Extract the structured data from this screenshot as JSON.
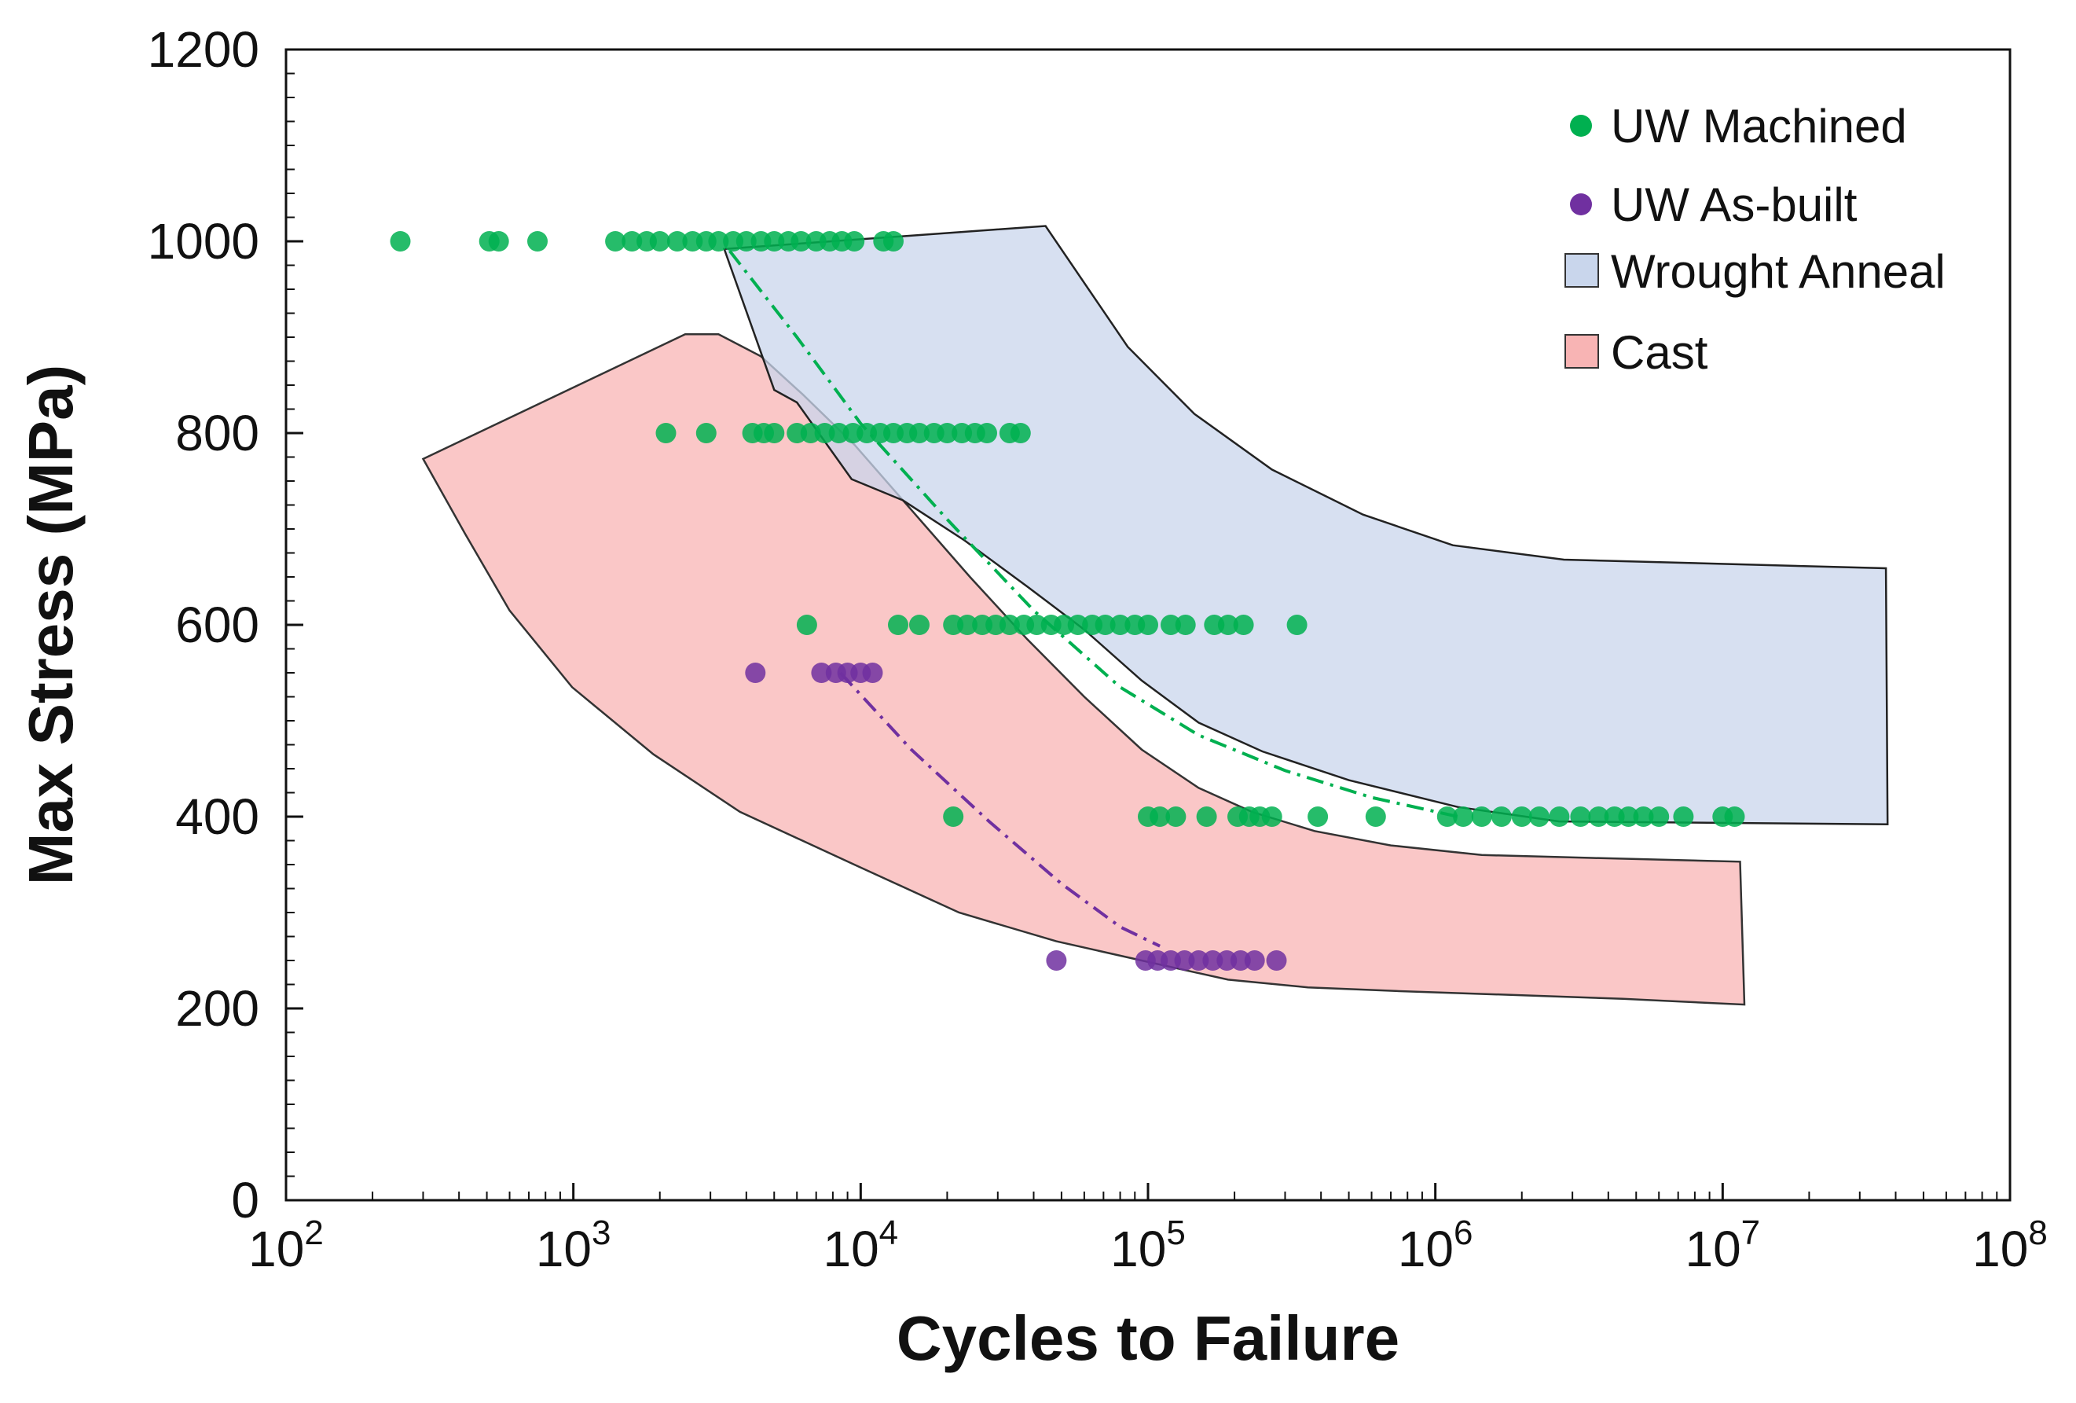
{
  "chart_data": {
    "type": "scatter",
    "title": "",
    "xlabel": "Cycles to Failure",
    "ylabel": "Max Stress (MPa)",
    "xscale": "log",
    "xlim": [
      100,
      100000000
    ],
    "ylim": [
      0,
      1200
    ],
    "x_ticks": [
      {
        "value": 100,
        "base": "10",
        "exp": "2"
      },
      {
        "value": 1000,
        "base": "10",
        "exp": "3"
      },
      {
        "value": 10000,
        "base": "10",
        "exp": "4"
      },
      {
        "value": 100000,
        "base": "10",
        "exp": "5"
      },
      {
        "value": 1000000,
        "base": "10",
        "exp": "6"
      },
      {
        "value": 10000000,
        "base": "10",
        "exp": "7"
      },
      {
        "value": 100000000,
        "base": "10",
        "exp": "8"
      }
    ],
    "y_ticks": [
      "0",
      "200",
      "400",
      "600",
      "800",
      "1000",
      "1200"
    ],
    "grid": false,
    "legend_position": "top-right",
    "legend": [
      {
        "label": "UW Machined",
        "kind": "marker",
        "color": "#00b050"
      },
      {
        "label": "UW As-built",
        "kind": "marker",
        "color": "#7030a0"
      },
      {
        "label": "Wrought Anneal",
        "kind": "patch",
        "fill": "#c9d6ec",
        "stroke": "#333333"
      },
      {
        "label": "Cast",
        "kind": "patch",
        "fill": "#f8b4b4",
        "stroke": "#333333"
      }
    ],
    "series": [
      {
        "name": "UW Machined",
        "color": "#00b050",
        "points": [
          [
            250,
            1000
          ],
          [
            510,
            1000
          ],
          [
            550,
            1000
          ],
          [
            750,
            1000
          ],
          [
            1400,
            1000
          ],
          [
            1600,
            1000
          ],
          [
            1800,
            1000
          ],
          [
            2000,
            1000
          ],
          [
            2300,
            1000
          ],
          [
            2600,
            1000
          ],
          [
            2900,
            1000
          ],
          [
            3200,
            1000
          ],
          [
            3600,
            1000
          ],
          [
            4000,
            1000
          ],
          [
            4500,
            1000
          ],
          [
            5000,
            1000
          ],
          [
            5600,
            1000
          ],
          [
            6200,
            1000
          ],
          [
            7000,
            1000
          ],
          [
            7800,
            1000
          ],
          [
            8600,
            1000
          ],
          [
            9500,
            1000
          ],
          [
            12000,
            1000
          ],
          [
            13000,
            1000
          ],
          [
            2100,
            800
          ],
          [
            2900,
            800
          ],
          [
            4200,
            800
          ],
          [
            4600,
            800
          ],
          [
            5000,
            800
          ],
          [
            6000,
            800
          ],
          [
            6700,
            800
          ],
          [
            7500,
            800
          ],
          [
            8400,
            800
          ],
          [
            9400,
            800
          ],
          [
            10500,
            800
          ],
          [
            11700,
            800
          ],
          [
            13000,
            800
          ],
          [
            14500,
            800
          ],
          [
            16000,
            800
          ],
          [
            18000,
            800
          ],
          [
            20000,
            800
          ],
          [
            22500,
            800
          ],
          [
            25000,
            800
          ],
          [
            27500,
            800
          ],
          [
            33000,
            800
          ],
          [
            36000,
            800
          ],
          [
            6500,
            600
          ],
          [
            13500,
            600
          ],
          [
            16000,
            600
          ],
          [
            21000,
            600
          ],
          [
            23500,
            600
          ],
          [
            26500,
            600
          ],
          [
            29500,
            600
          ],
          [
            33000,
            600
          ],
          [
            37000,
            600
          ],
          [
            41000,
            600
          ],
          [
            46000,
            600
          ],
          [
            51000,
            600
          ],
          [
            57000,
            600
          ],
          [
            64000,
            600
          ],
          [
            71000,
            600
          ],
          [
            80000,
            600
          ],
          [
            90000,
            600
          ],
          [
            100000,
            600
          ],
          [
            120000,
            600
          ],
          [
            135000,
            600
          ],
          [
            170000,
            600
          ],
          [
            190000,
            600
          ],
          [
            215000,
            600
          ],
          [
            330000,
            600
          ],
          [
            21000,
            400
          ],
          [
            100000,
            400
          ],
          [
            110000,
            400
          ],
          [
            125000,
            400
          ],
          [
            160000,
            400
          ],
          [
            205000,
            400
          ],
          [
            225000,
            400
          ],
          [
            245000,
            400
          ],
          [
            270000,
            400
          ],
          [
            390000,
            400
          ],
          [
            620000,
            400
          ],
          [
            1100000,
            400
          ],
          [
            1250000,
            400
          ],
          [
            1450000,
            400
          ],
          [
            1700000,
            400
          ],
          [
            2000000,
            400
          ],
          [
            2300000,
            400
          ],
          [
            2700000,
            400
          ],
          [
            3200000,
            400
          ],
          [
            3700000,
            400
          ],
          [
            4200000,
            400
          ],
          [
            4700000,
            400
          ],
          [
            5300000,
            400
          ],
          [
            6000000,
            400
          ],
          [
            7300000,
            400
          ],
          [
            10000000,
            400
          ],
          [
            11000000,
            400
          ]
        ]
      },
      {
        "name": "UW As-built",
        "color": "#7030a0",
        "points": [
          [
            4300,
            550
          ],
          [
            7300,
            550
          ],
          [
            8200,
            550
          ],
          [
            9000,
            550
          ],
          [
            10000,
            550
          ],
          [
            11000,
            550
          ],
          [
            48000,
            250
          ],
          [
            98000,
            250
          ],
          [
            108000,
            250
          ],
          [
            120000,
            250
          ],
          [
            134000,
            250
          ],
          [
            150000,
            250
          ],
          [
            168000,
            250
          ],
          [
            188000,
            250
          ],
          [
            210000,
            250
          ],
          [
            235000,
            250
          ],
          [
            280000,
            250
          ]
        ]
      }
    ],
    "regions": [
      {
        "name": "Cast",
        "fill": "#f8b4b4",
        "stroke": "#333333",
        "polygon": [
          [
            300,
            773
          ],
          [
            2450,
            903
          ],
          [
            3200,
            903
          ],
          [
            4500,
            880
          ],
          [
            6300,
            840
          ],
          [
            9500,
            788
          ],
          [
            15000,
            720
          ],
          [
            24000,
            650
          ],
          [
            38000,
            585
          ],
          [
            60000,
            525
          ],
          [
            95000,
            470
          ],
          [
            150000,
            430
          ],
          [
            230000,
            405
          ],
          [
            380000,
            385
          ],
          [
            700000,
            370
          ],
          [
            1450000,
            360
          ],
          [
            3500000,
            357
          ],
          [
            11500000,
            353
          ],
          [
            11900000,
            204
          ],
          [
            4500000,
            210
          ],
          [
            1500000,
            215
          ],
          [
            750000,
            218
          ],
          [
            360000,
            222
          ],
          [
            190000,
            230
          ],
          [
            95000,
            250
          ],
          [
            48000,
            270
          ],
          [
            22000,
            300
          ],
          [
            9500,
            350
          ],
          [
            3800,
            405
          ],
          [
            1900,
            465
          ],
          [
            990,
            535
          ],
          [
            600,
            615
          ],
          [
            420,
            695
          ],
          [
            300,
            773
          ]
        ]
      },
      {
        "name": "Wrought Anneal",
        "fill": "#c9d6ec",
        "stroke": "#222222",
        "polygon": [
          [
            3350,
            992
          ],
          [
            44000,
            1016
          ],
          [
            85000,
            890
          ],
          [
            145000,
            820
          ],
          [
            270000,
            762
          ],
          [
            560000,
            715
          ],
          [
            1150000,
            683
          ],
          [
            2800000,
            668
          ],
          [
            37000000,
            659
          ],
          [
            37500000,
            392
          ],
          [
            2700000,
            395
          ],
          [
            1200000,
            410
          ],
          [
            500000,
            438
          ],
          [
            250000,
            468
          ],
          [
            150000,
            498
          ],
          [
            95000,
            542
          ],
          [
            60000,
            595
          ],
          [
            38000,
            640
          ],
          [
            23000,
            688
          ],
          [
            14000,
            730
          ],
          [
            9300,
            752
          ],
          [
            6000,
            832
          ],
          [
            5000,
            845
          ],
          [
            3350,
            992
          ]
        ]
      }
    ],
    "trend_lines": [
      {
        "name": "UW Machined trend",
        "color": "#00b050",
        "points": [
          [
            3500,
            990
          ],
          [
            6000,
            900
          ],
          [
            10000,
            810
          ],
          [
            20000,
            710
          ],
          [
            40000,
            615
          ],
          [
            80000,
            535
          ],
          [
            150000,
            485
          ],
          [
            300000,
            448
          ],
          [
            600000,
            420
          ],
          [
            1200000,
            400
          ]
        ]
      },
      {
        "name": "UW As-built trend",
        "color": "#7030a0",
        "points": [
          [
            8500,
            550
          ],
          [
            15000,
            470
          ],
          [
            28000,
            395
          ],
          [
            50000,
            330
          ],
          [
            80000,
            285
          ],
          [
            110000,
            265
          ]
        ]
      }
    ]
  }
}
